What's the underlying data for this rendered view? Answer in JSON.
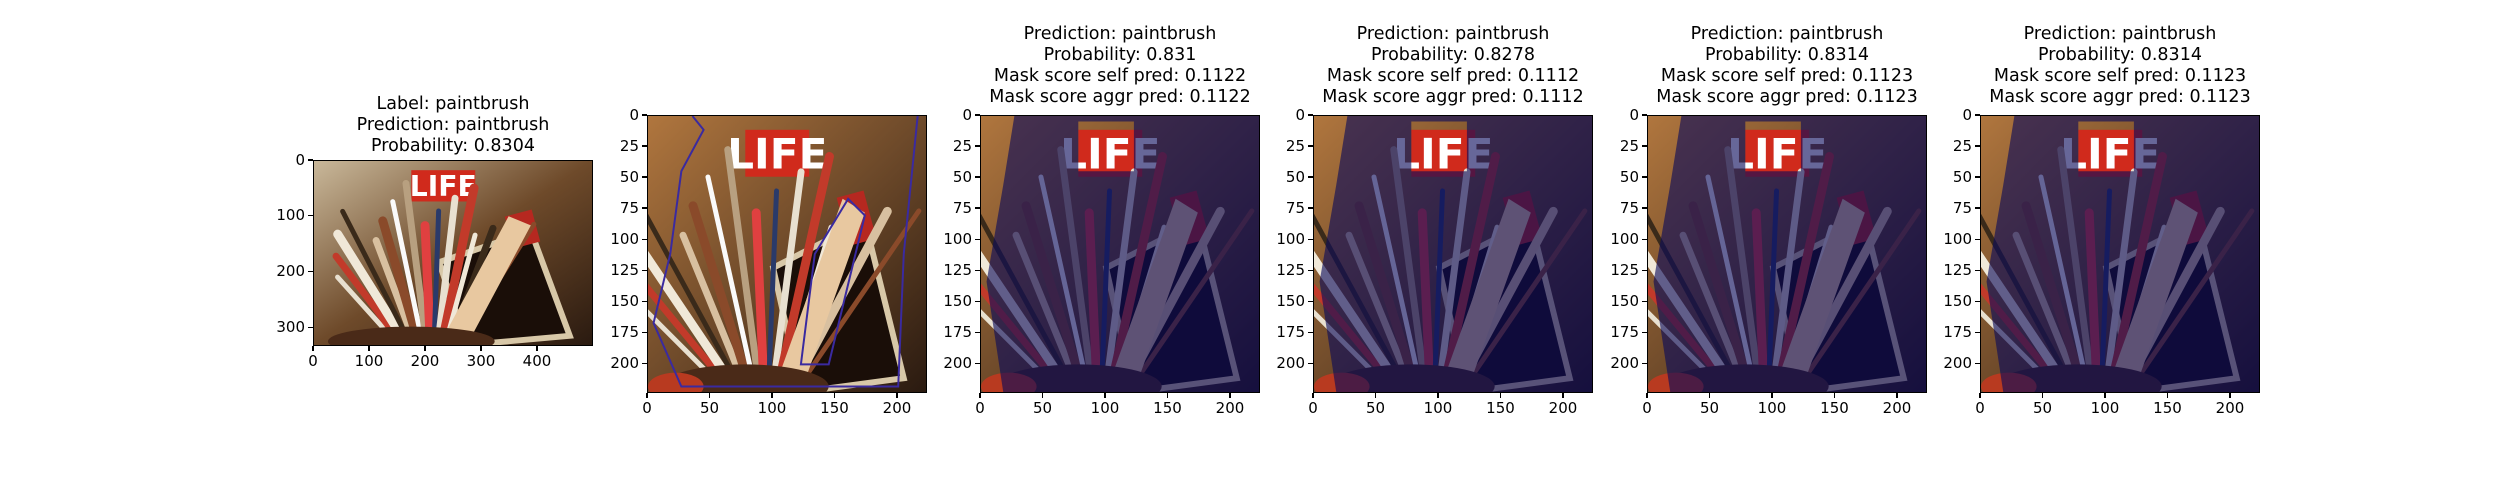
{
  "figure": {
    "panels": [
      {
        "title_lines": [
          "Label: paintbrush",
          "Prediction: paintbrush",
          "Probability: 0.8304"
        ],
        "image": "paintbrush-photo-original",
        "xlim": [
          0,
          500
        ],
        "ylim": [
          0,
          333
        ],
        "xticks": [
          "0",
          "100",
          "200",
          "300",
          "400"
        ],
        "yticks": [
          "0",
          "100",
          "200",
          "300"
        ]
      },
      {
        "title_lines": [],
        "image": "paintbrush-photo-cropped-with-mask-contour",
        "xlim": [
          0,
          224
        ],
        "ylim": [
          0,
          224
        ],
        "xticks": [
          "0",
          "50",
          "100",
          "150",
          "200"
        ],
        "yticks": [
          "0",
          "25",
          "50",
          "75",
          "100",
          "125",
          "150",
          "175",
          "200"
        ]
      },
      {
        "title_lines": [
          "Prediction: paintbrush",
          "Probability: 0.831",
          "Mask score self pred: 0.1122",
          "Mask score aggr pred: 0.1122"
        ],
        "image": "paintbrush-photo-with-mask-overlay",
        "xlim": [
          0,
          224
        ],
        "ylim": [
          0,
          224
        ],
        "xticks": [
          "0",
          "50",
          "100",
          "150",
          "200"
        ],
        "yticks": [
          "0",
          "25",
          "50",
          "75",
          "100",
          "125",
          "150",
          "175",
          "200"
        ]
      },
      {
        "title_lines": [
          "Prediction: paintbrush",
          "Probability: 0.8278",
          "Mask score self pred: 0.1112",
          "Mask score aggr pred: 0.1112"
        ],
        "image": "paintbrush-photo-with-mask-overlay",
        "xlim": [
          0,
          224
        ],
        "ylim": [
          0,
          224
        ],
        "xticks": [
          "0",
          "50",
          "100",
          "150",
          "200"
        ],
        "yticks": [
          "0",
          "25",
          "50",
          "75",
          "100",
          "125",
          "150",
          "175",
          "200"
        ]
      },
      {
        "title_lines": [
          "Prediction: paintbrush",
          "Probability: 0.8314",
          "Mask score self pred: 0.1123",
          "Mask score aggr pred: 0.1123"
        ],
        "image": "paintbrush-photo-with-mask-overlay",
        "xlim": [
          0,
          224
        ],
        "ylim": [
          0,
          224
        ],
        "xticks": [
          "0",
          "50",
          "100",
          "150",
          "200"
        ],
        "yticks": [
          "0",
          "25",
          "50",
          "75",
          "100",
          "125",
          "150",
          "175",
          "200"
        ]
      },
      {
        "title_lines": [
          "Prediction: paintbrush",
          "Probability: 0.8314",
          "Mask score self pred: 0.1123",
          "Mask score aggr pred: 0.1123"
        ],
        "image": "paintbrush-photo-with-mask-overlay",
        "xlim": [
          0,
          224
        ],
        "ylim": [
          0,
          224
        ],
        "xticks": [
          "0",
          "50",
          "100",
          "150",
          "200"
        ],
        "yticks": [
          "0",
          "25",
          "50",
          "75",
          "100",
          "125",
          "150",
          "175",
          "200"
        ]
      }
    ]
  },
  "chart_data": [
    {
      "type": "image",
      "label": "paintbrush",
      "prediction": "paintbrush",
      "probability": 0.8304,
      "xlim": [
        0,
        500
      ],
      "ylim": [
        0,
        333
      ]
    },
    {
      "type": "image",
      "xlim": [
        0,
        224
      ],
      "ylim": [
        0,
        224
      ]
    },
    {
      "type": "image",
      "prediction": "paintbrush",
      "probability": 0.831,
      "mask_score_self_pred": 0.1122,
      "mask_score_aggr_pred": 0.1122,
      "xlim": [
        0,
        224
      ],
      "ylim": [
        0,
        224
      ]
    },
    {
      "type": "image",
      "prediction": "paintbrush",
      "probability": 0.8278,
      "mask_score_self_pred": 0.1112,
      "mask_score_aggr_pred": 0.1112,
      "xlim": [
        0,
        224
      ],
      "ylim": [
        0,
        224
      ]
    },
    {
      "type": "image",
      "prediction": "paintbrush",
      "probability": 0.8314,
      "mask_score_self_pred": 0.1123,
      "mask_score_aggr_pred": 0.1123,
      "xlim": [
        0,
        224
      ],
      "ylim": [
        0,
        224
      ]
    },
    {
      "type": "image",
      "prediction": "paintbrush",
      "probability": 0.8314,
      "mask_score_self_pred": 0.1123,
      "mask_score_aggr_pred": 0.1123,
      "xlim": [
        0,
        224
      ],
      "ylim": [
        0,
        224
      ]
    }
  ],
  "logo_text": "LIFE",
  "colors": {
    "mask_overlay": "#0a0a5a",
    "mask_contour": "#3a2aa0",
    "life_red": "#d02a1c",
    "warm_bg": "#a04a2a"
  }
}
